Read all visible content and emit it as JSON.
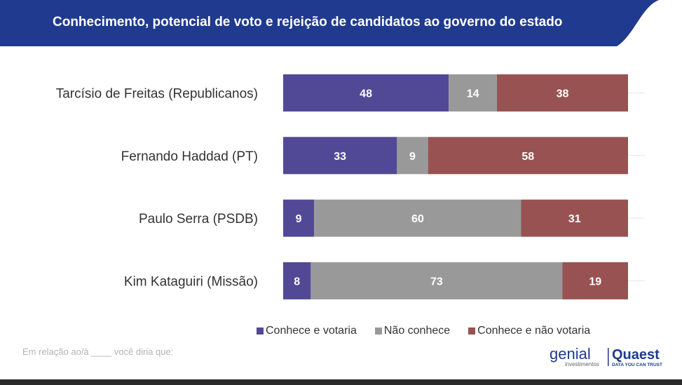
{
  "header": {
    "title": "Conhecimento, potencial de voto e rejeição de candidatos ao governo do estado"
  },
  "colors": {
    "header_bg": "#1f3a8f",
    "votaria": "#514896",
    "nao_conhece": "#999999",
    "nao_votaria": "#985252"
  },
  "chart_data": {
    "type": "bar",
    "orientation": "horizontal-stacked-100",
    "categories": [
      "Tarcísio de Freitas (Republicanos)",
      "Fernando Haddad (PT)",
      "Paulo Serra (PSDB)",
      "Kim Kataguiri (Missão)"
    ],
    "series": [
      {
        "name": "Conhece e votaria",
        "values": [
          48,
          33,
          9,
          8
        ]
      },
      {
        "name": "Não conhece",
        "values": [
          14,
          9,
          60,
          73
        ]
      },
      {
        "name": "Conhece e não votaria",
        "values": [
          38,
          58,
          31,
          19
        ]
      }
    ],
    "xlim": [
      0,
      100
    ],
    "grid": true,
    "legend_position": "bottom"
  },
  "footnote": "Em relação ao/à ____ você diria que:",
  "logos": {
    "genial_name": "genial",
    "genial_sub": "investimentos",
    "quaest_name": "Quaest",
    "quaest_tagline": "DATA YOU CAN TRUST"
  }
}
